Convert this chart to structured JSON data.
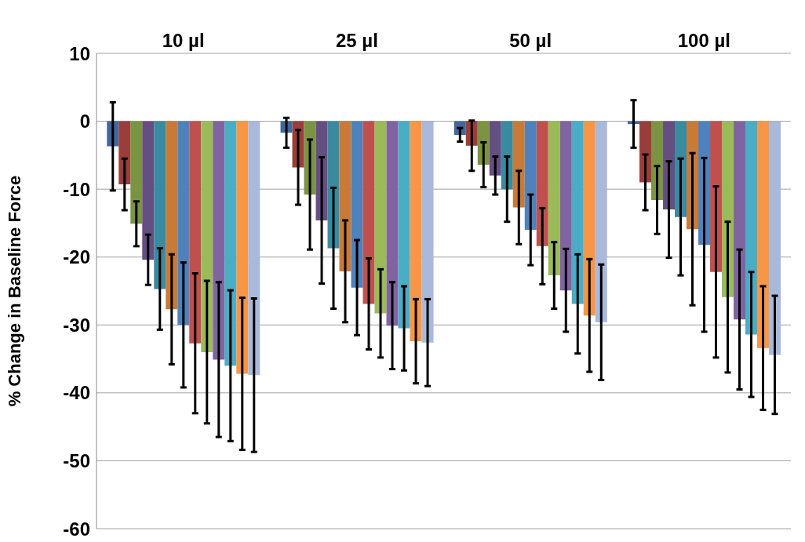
{
  "chart_data": {
    "type": "bar",
    "ylabel": "% Change in Baseline Force",
    "categories": [
      "10 µl",
      "25 µl",
      "50 µl",
      "100 µl"
    ],
    "ylim": [
      -60,
      10
    ],
    "yticks": [
      -60,
      -50,
      -40,
      -30,
      -20,
      -10,
      0,
      10
    ],
    "grid": "y",
    "legend": false,
    "series": [
      {
        "color": "#41679b",
        "values": [
          -3.7,
          -1.7,
          -2.0,
          -0.4
        ],
        "errors": [
          6.5,
          2.2,
          1.0,
          3.5
        ]
      },
      {
        "color": "#9b3d3a",
        "values": [
          -9.3,
          -6.8,
          -3.6,
          -9.0
        ],
        "errors": [
          3.8,
          5.5,
          3.7,
          4.1
        ]
      },
      {
        "color": "#7a9442",
        "values": [
          -15.1,
          -10.8,
          -6.4,
          -11.6
        ],
        "errors": [
          3.3,
          8.1,
          3.3,
          5.0
        ]
      },
      {
        "color": "#654e82",
        "values": [
          -20.4,
          -14.6,
          -8.0,
          -13.0
        ],
        "errors": [
          3.7,
          9.3,
          2.8,
          7.1
        ]
      },
      {
        "color": "#3a8aa0",
        "values": [
          -24.7,
          -18.7,
          -10.0,
          -14.1
        ],
        "errors": [
          6.0,
          8.9,
          4.8,
          8.6
        ]
      },
      {
        "color": "#c97a36",
        "values": [
          -27.7,
          -22.1,
          -12.7,
          -15.9
        ],
        "errors": [
          8.1,
          7.5,
          5.4,
          11.2
        ]
      },
      {
        "color": "#4f81bd",
        "values": [
          -30.0,
          -24.5,
          -16.0,
          -18.2
        ],
        "errors": [
          9.2,
          7.0,
          5.2,
          12.8
        ]
      },
      {
        "color": "#c0504d",
        "values": [
          -32.7,
          -26.9,
          -18.4,
          -22.2
        ],
        "errors": [
          10.3,
          6.7,
          5.6,
          12.6
        ]
      },
      {
        "color": "#9bbb59",
        "values": [
          -34.0,
          -28.3,
          -22.7,
          -25.9
        ],
        "errors": [
          10.5,
          6.5,
          4.9,
          11.1
        ]
      },
      {
        "color": "#8064a2",
        "values": [
          -35.1,
          -30.1,
          -24.9,
          -29.2
        ],
        "errors": [
          11.4,
          6.4,
          6.1,
          10.3
        ]
      },
      {
        "color": "#4bacc6",
        "values": [
          -36.0,
          -30.5,
          -26.9,
          -31.4
        ],
        "errors": [
          11.1,
          6.2,
          7.3,
          9.2
        ]
      },
      {
        "color": "#f79646",
        "values": [
          -37.2,
          -32.4,
          -28.6,
          -33.4
        ],
        "errors": [
          11.2,
          6.2,
          8.3,
          9.1
        ]
      },
      {
        "color": "#a9b9da",
        "values": [
          -37.4,
          -32.6,
          -29.6,
          -34.4
        ],
        "errors": [
          11.3,
          6.4,
          8.5,
          8.7
        ]
      }
    ]
  }
}
